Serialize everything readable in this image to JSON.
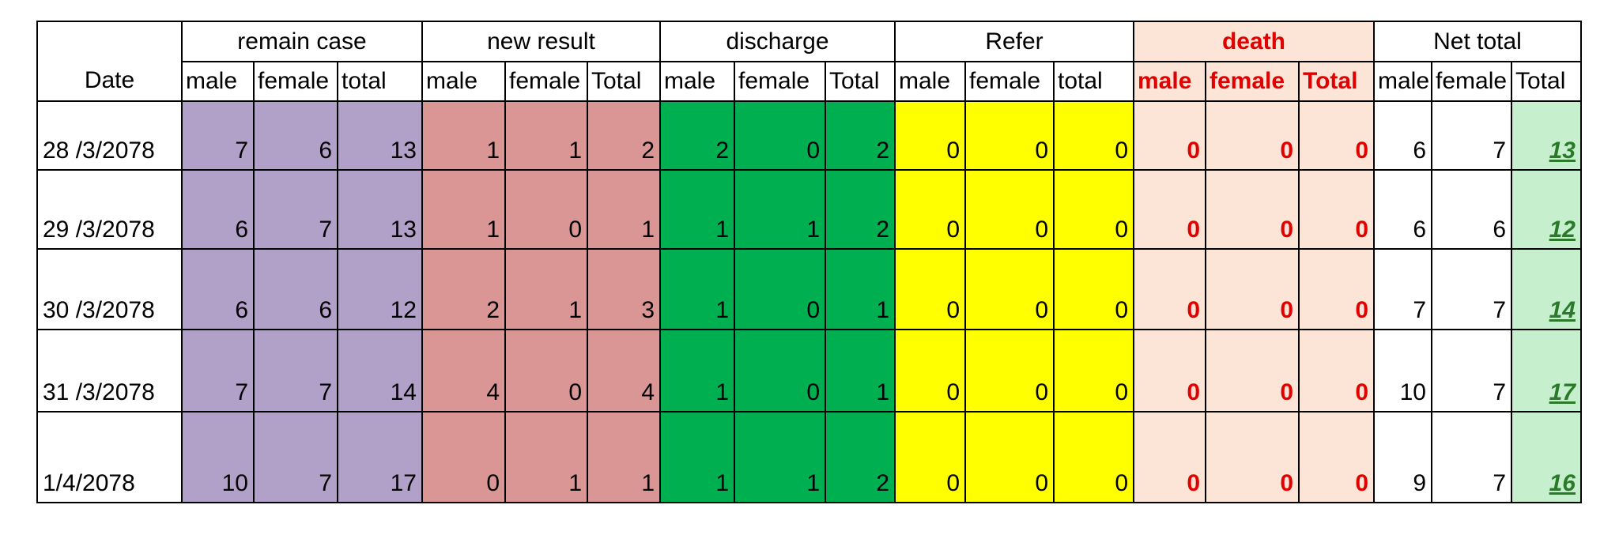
{
  "table": {
    "corner": "Date",
    "groups": [
      "remain case",
      "new result",
      "discharge",
      "Refer",
      "death",
      "Net total"
    ],
    "subheaders": [
      [
        "male",
        "female",
        "total"
      ],
      [
        "male",
        "female",
        "Total"
      ],
      [
        "male",
        "female",
        "Total"
      ],
      [
        "male",
        "female",
        "total"
      ],
      [
        "male",
        "female",
        "Total"
      ],
      [
        "male",
        "female",
        "Total"
      ]
    ],
    "rows": [
      [
        "28 /3/2078",
        7,
        6,
        13,
        1,
        1,
        2,
        2,
        0,
        2,
        0,
        0,
        0,
        0,
        0,
        0,
        6,
        7,
        13
      ],
      [
        "29 /3/2078",
        6,
        7,
        13,
        1,
        0,
        1,
        1,
        1,
        2,
        0,
        0,
        0,
        0,
        0,
        0,
        6,
        6,
        12
      ],
      [
        "30 /3/2078",
        6,
        6,
        12,
        2,
        1,
        3,
        1,
        0,
        1,
        0,
        0,
        0,
        0,
        0,
        0,
        7,
        7,
        14
      ],
      [
        "31 /3/2078",
        7,
        7,
        14,
        4,
        0,
        4,
        1,
        0,
        1,
        0,
        0,
        0,
        0,
        0,
        0,
        10,
        7,
        17
      ],
      [
        "1/4/2078",
        10,
        7,
        17,
        0,
        1,
        1,
        1,
        1,
        2,
        0,
        0,
        0,
        0,
        0,
        0,
        9,
        7,
        16
      ]
    ]
  }
}
